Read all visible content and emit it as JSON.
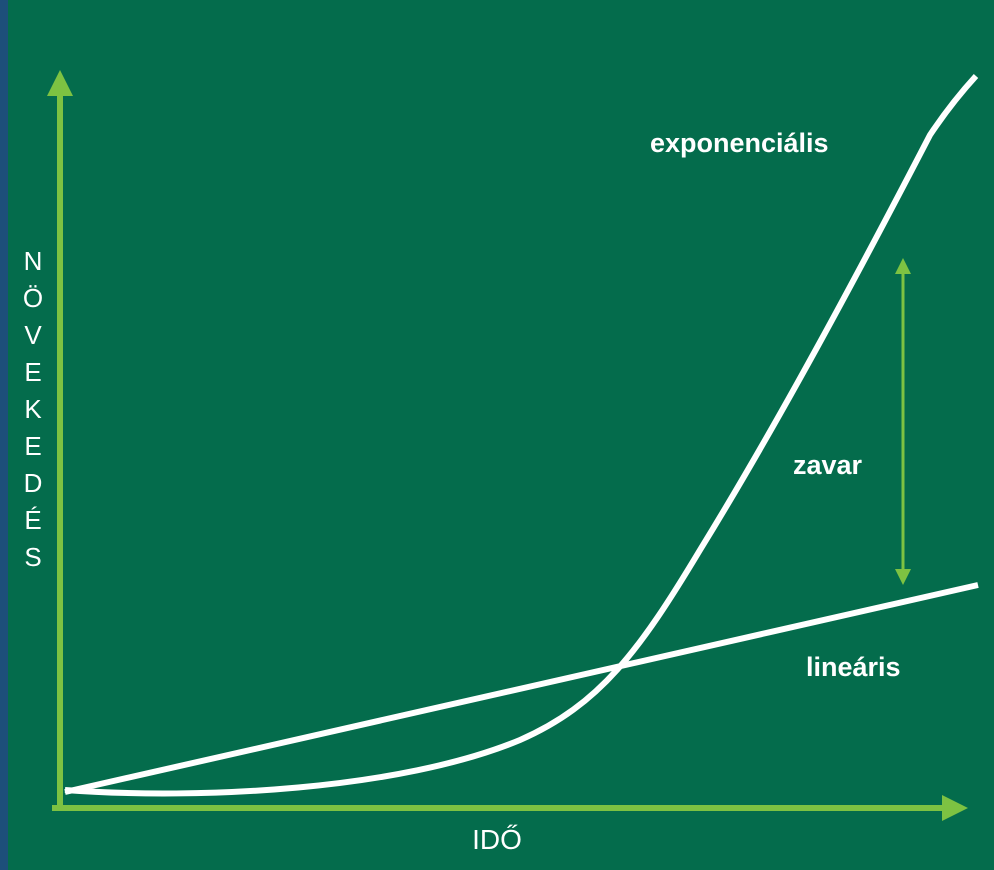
{
  "y_axis_label": "NÖVEKEDÉS",
  "x_axis_label": "IDŐ",
  "curves": {
    "exponential": "exponenciális",
    "linear": "lineáris"
  },
  "gap_label": "zavar"
}
